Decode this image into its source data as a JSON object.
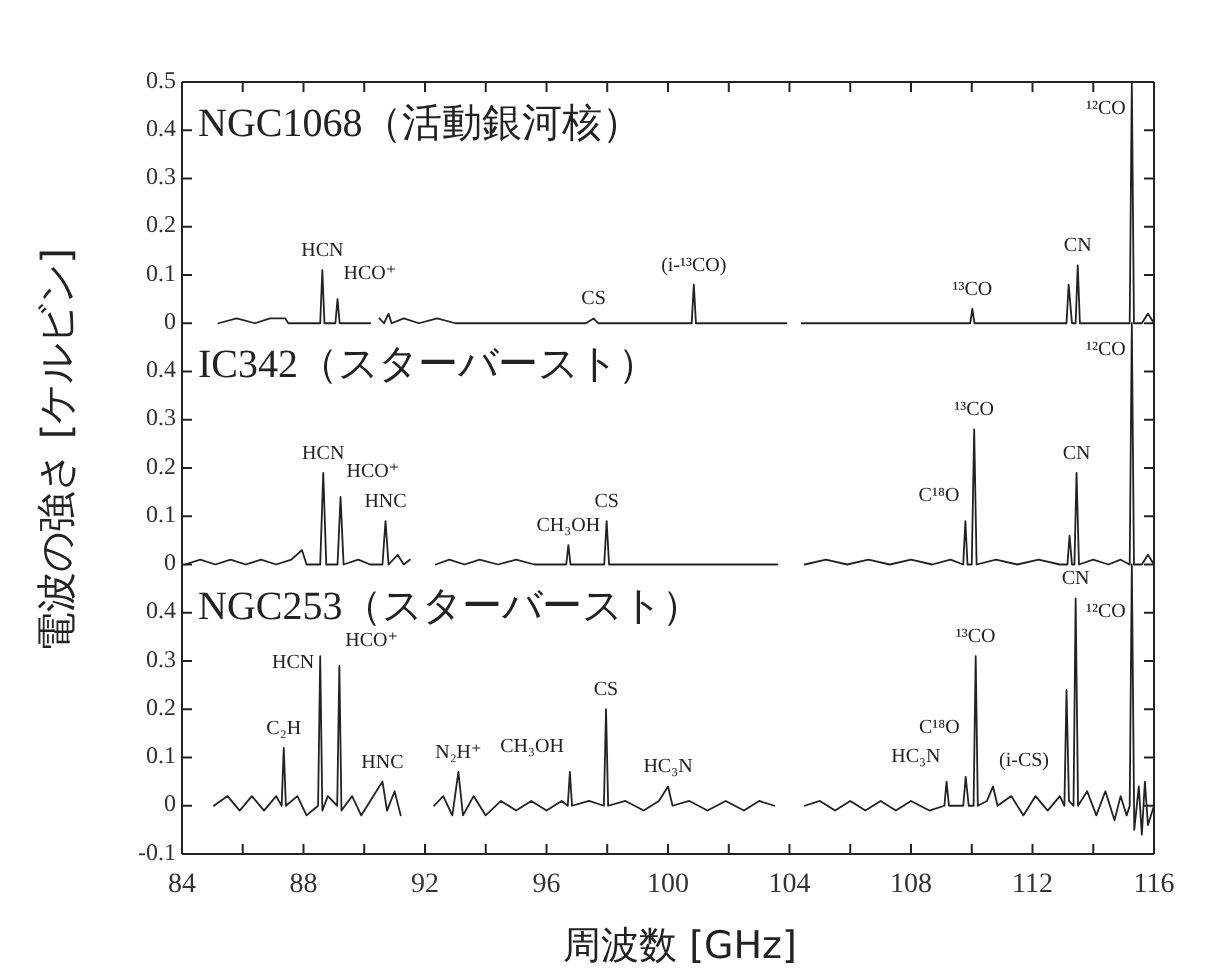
{
  "chart_data": [
    {
      "type": "line",
      "title": "NGC1068（活動銀河核）",
      "xlim": [
        84,
        116
      ],
      "xticks": [
        {
          "value": 84,
          "label": null
        },
        {
          "value": 86,
          "label": null
        },
        {
          "value": 88,
          "label": null
        },
        {
          "value": 90,
          "label": null
        },
        {
          "value": 92,
          "label": null
        },
        {
          "value": 94,
          "label": null
        },
        {
          "value": 96,
          "label": null
        },
        {
          "value": 98,
          "label": null
        },
        {
          "value": 100,
          "label": null
        },
        {
          "value": 102,
          "label": null
        },
        {
          "value": 104,
          "label": null
        },
        {
          "value": 106,
          "label": null
        },
        {
          "value": 108,
          "label": null
        },
        {
          "value": 110,
          "label": null
        },
        {
          "value": 112,
          "label": null
        },
        {
          "value": 114,
          "label": null
        },
        {
          "value": 116,
          "label": null
        }
      ],
      "ylim": [
        0,
        0.5
      ],
      "yticks": [
        0,
        0.1,
        0.2,
        0.3,
        0.4,
        0.5
      ],
      "tick_labels": "y",
      "series": [
        {
          "color": "#222222",
          "x": [
            85.2,
            85.8,
            86.4,
            86.9,
            87.4,
            87.5,
            88.0,
            88.55,
            88.62,
            88.69,
            89.05,
            89.12,
            89.19,
            89.7,
            90.2,
            90.35,
            90.5,
            90.65,
            90.8,
            90.9,
            91.3,
            91.8,
            92.4,
            93.0,
            93.6,
            94.2,
            95.0,
            95.8,
            96.6,
            97.3,
            97.55,
            97.7,
            98.4,
            99.2,
            100.0,
            100.78,
            100.85,
            100.92,
            101.5,
            102.3,
            103.1,
            103.9,
            104.1,
            104.4,
            105.2,
            106.0,
            106.8,
            107.6,
            108.4,
            109.2,
            109.95,
            110.02,
            110.09,
            110.7,
            111.4,
            112.1,
            112.8,
            113.12,
            113.19,
            113.3,
            113.42,
            113.49,
            113.56,
            114.0,
            114.6,
            115.2,
            115.27,
            115.34,
            115.6,
            115.8,
            116.0
          ],
          "values": [
            0,
            0.01,
            0,
            0.01,
            0.01,
            0,
            0,
            0,
            0.11,
            0,
            0,
            0.05,
            0,
            0,
            0,
            null,
            0.01,
            0,
            0.02,
            0,
            0.01,
            0,
            0.01,
            0,
            0,
            0,
            0,
            0,
            0,
            0,
            0.01,
            0,
            0,
            0,
            0,
            0,
            0.08,
            0,
            0,
            0,
            0,
            0,
            null,
            0,
            0,
            0,
            0,
            0,
            0,
            0,
            0,
            0.03,
            0,
            0,
            0,
            0,
            0,
            0,
            0.08,
            0,
            0,
            0.12,
            0,
            0,
            0,
            0,
            0.5,
            0,
            0,
            0.02,
            0
          ]
        }
      ],
      "annotations": [
        {
          "text": "HCN",
          "x": 88.62,
          "y": 0.11
        },
        {
          "text": "HCO⁺",
          "x": 89.12,
          "y": 0.05
        },
        {
          "text": "CS",
          "x": 97.55,
          "y": 0.01
        },
        {
          "text": "(i-¹³CO)",
          "x": 100.85,
          "y": 0.08
        },
        {
          "text": "¹³CO",
          "x": 110.02,
          "y": 0.03
        },
        {
          "text": "CN",
          "x": 113.49,
          "y": 0.12
        },
        {
          "text": "¹²CO",
          "x": 115.27,
          "y": 0.5
        }
      ]
    },
    {
      "type": "line",
      "title": "IC342（スターバースト）",
      "ylabel": "電波の強さ [ケルビン]",
      "xlim": [
        84,
        116
      ],
      "ylim": [
        0,
        0.5
      ],
      "yticks": [
        0,
        0.1,
        0.2,
        0.3,
        0.4
      ],
      "tick_labels": "y",
      "series": [
        {
          "color": "#222222",
          "x": [
            84.1,
            84.6,
            85.1,
            85.6,
            86.1,
            86.6,
            87.1,
            87.6,
            87.95,
            88.1,
            88.55,
            88.65,
            88.75,
            89.12,
            89.22,
            89.32,
            89.8,
            90.2,
            90.6,
            90.7,
            90.8,
            91.1,
            91.3,
            91.5,
            91.9,
            92.35,
            92.8,
            93.3,
            93.8,
            94.4,
            95.0,
            95.6,
            96.2,
            96.65,
            96.72,
            96.79,
            97.4,
            97.9,
            97.98,
            98.06,
            98.8,
            99.6,
            100.4,
            101.2,
            102.0,
            102.8,
            103.6,
            104.0,
            104.5,
            105.2,
            105.9,
            106.6,
            107.3,
            108.0,
            108.7,
            109.3,
            109.72,
            109.79,
            109.86,
            110.0,
            110.08,
            110.16,
            110.8,
            111.5,
            112.2,
            112.9,
            113.15,
            113.22,
            113.3,
            113.38,
            113.45,
            113.53,
            114.0,
            114.5,
            114.9,
            115.2,
            115.27,
            115.34,
            115.6,
            115.8,
            116.0
          ],
          "values": [
            0,
            0.01,
            0,
            0.01,
            0,
            0.01,
            0,
            0.01,
            0.03,
            0,
            0,
            0.19,
            0,
            0,
            0.14,
            0,
            0.01,
            0,
            0,
            0.09,
            0,
            0.02,
            0,
            0.01,
            null,
            0,
            0.01,
            0,
            0.01,
            0,
            0.01,
            0,
            0,
            0,
            0.04,
            0,
            0,
            0,
            0.09,
            0,
            0,
            0,
            0,
            0,
            0,
            0,
            0,
            null,
            0,
            0.01,
            0,
            0.01,
            0,
            0.01,
            0,
            0.01,
            0,
            0.09,
            0,
            0,
            0.28,
            0,
            0.01,
            0,
            0.01,
            0,
            0,
            0.06,
            0,
            0,
            0.19,
            0,
            0.01,
            0,
            0.01,
            0,
            0.5,
            0,
            0,
            0.02,
            0
          ]
        }
      ],
      "annotations": [
        {
          "text": "HCN",
          "x": 88.65,
          "y": 0.19
        },
        {
          "text": "HCO⁺",
          "x": 89.22,
          "y": 0.14
        },
        {
          "text": "HNC",
          "x": 90.7,
          "y": 0.09
        },
        {
          "text": "CH₃OH",
          "x": 96.72,
          "y": 0.04
        },
        {
          "text": "CS",
          "x": 97.98,
          "y": 0.09
        },
        {
          "text": "C¹⁸O",
          "x": 109.79,
          "y": 0.09
        },
        {
          "text": "¹³CO",
          "x": 110.08,
          "y": 0.28
        },
        {
          "text": "CN",
          "x": 113.45,
          "y": 0.19
        },
        {
          "text": "¹²CO",
          "x": 115.27,
          "y": 0.5
        }
      ]
    },
    {
      "type": "line",
      "title": "NGC253（スターバースト）",
      "xlabel": "周波数 [GHz]",
      "xlim": [
        84,
        116
      ],
      "xticks": [
        84,
        {
          "value": 86,
          "label": null
        },
        88,
        {
          "value": 90,
          "label": null
        },
        92,
        {
          "value": 94,
          "label": null
        },
        96,
        {
          "value": 98,
          "label": null
        },
        100,
        {
          "value": 102,
          "label": null
        },
        104,
        {
          "value": 106,
          "label": null
        },
        108,
        {
          "value": 110,
          "label": null
        },
        112,
        {
          "value": 114,
          "label": null
        },
        116
      ],
      "ylim": [
        -0.1,
        0.5
      ],
      "yticks": [
        -0.1,
        0,
        0.1,
        0.2,
        0.3,
        0.4
      ],
      "series": [
        {
          "color": "#222222",
          "x": [
            85.05,
            85.5,
            85.9,
            86.3,
            86.7,
            87.1,
            87.28,
            87.35,
            87.42,
            87.8,
            88.1,
            88.48,
            88.55,
            88.62,
            88.8,
            89.11,
            89.18,
            89.25,
            89.6,
            89.9,
            90.3,
            90.6,
            90.75,
            91.0,
            91.2,
            91.7,
            92.3,
            92.6,
            92.9,
            93.1,
            93.25,
            93.6,
            94.0,
            94.5,
            95.0,
            95.5,
            96.0,
            96.5,
            96.7,
            96.77,
            96.84,
            97.4,
            97.89,
            97.96,
            98.03,
            98.6,
            99.2,
            99.7,
            100.0,
            100.15,
            100.7,
            101.3,
            101.9,
            102.5,
            103.0,
            103.5,
            104.0,
            104.5,
            105.0,
            105.5,
            106.0,
            106.5,
            107.0,
            107.5,
            108.0,
            108.6,
            109.1,
            109.17,
            109.25,
            109.72,
            109.8,
            109.9,
            110.06,
            110.13,
            110.2,
            110.5,
            110.7,
            110.85,
            111.3,
            111.7,
            112.1,
            112.5,
            112.9,
            113.05,
            113.12,
            113.2,
            113.35,
            113.42,
            113.5,
            113.8,
            114.1,
            114.4,
            114.7,
            114.9,
            115.1,
            115.2,
            115.27,
            115.35,
            115.5,
            115.6,
            115.7,
            115.8,
            116.0
          ],
          "values": [
            0,
            0.02,
            -0.01,
            0.02,
            -0.01,
            0.02,
            0,
            0.12,
            0,
            0.02,
            -0.02,
            0,
            0.31,
            -0.01,
            0.02,
            0,
            0.29,
            -0.01,
            0.02,
            -0.02,
            0.02,
            0.05,
            -0.01,
            0.03,
            -0.02,
            null,
            0,
            0.02,
            -0.02,
            0.07,
            -0.02,
            0.02,
            -0.02,
            0.01,
            -0.01,
            0.01,
            -0.01,
            0.01,
            0,
            0.07,
            0,
            0.01,
            0,
            0.2,
            0,
            0.01,
            -0.01,
            0.01,
            0.04,
            0,
            0.01,
            -0.01,
            0.01,
            -0.01,
            0.01,
            0,
            null,
            0,
            0.01,
            -0.01,
            0.01,
            -0.01,
            0.01,
            -0.01,
            0.01,
            -0.01,
            0,
            0.05,
            0,
            0,
            0.06,
            0,
            0,
            0.31,
            0,
            0.01,
            0.04,
            0,
            0.02,
            -0.02,
            0.02,
            -0.01,
            0.02,
            0,
            0.24,
            0.01,
            0,
            0.43,
            0,
            0.03,
            -0.02,
            0.03,
            -0.03,
            0.02,
            -0.02,
            0,
            0.5,
            -0.05,
            0.04,
            -0.06,
            0.05,
            -0.04,
            0
          ]
        }
      ],
      "annotations": [
        {
          "text": "C₂H",
          "x": 87.35,
          "y": 0.12
        },
        {
          "text": "HCN",
          "x": 88.55,
          "y": 0.31
        },
        {
          "text": "HCO⁺",
          "x": 89.18,
          "y": 0.29
        },
        {
          "text": "HNC",
          "x": 90.6,
          "y": 0.05
        },
        {
          "text": "N₂H⁺",
          "x": 93.1,
          "y": 0.07
        },
        {
          "text": "CH₃OH",
          "x": 96.77,
          "y": 0.07
        },
        {
          "text": "CS",
          "x": 97.96,
          "y": 0.2
        },
        {
          "text": "HC₃N",
          "x": 100.0,
          "y": 0.04
        },
        {
          "text": "HC₃N",
          "x": 109.17,
          "y": 0.05
        },
        {
          "text": "C¹⁸O",
          "x": 109.8,
          "y": 0.06
        },
        {
          "text": "¹³CO",
          "x": 110.13,
          "y": 0.31
        },
        {
          "text": "(i-CS)",
          "x": 110.7,
          "y": 0.04
        },
        {
          "text": "CN",
          "x": 113.42,
          "y": 0.43
        },
        {
          "text": "¹²CO",
          "x": 115.27,
          "y": 0.5
        }
      ]
    }
  ]
}
